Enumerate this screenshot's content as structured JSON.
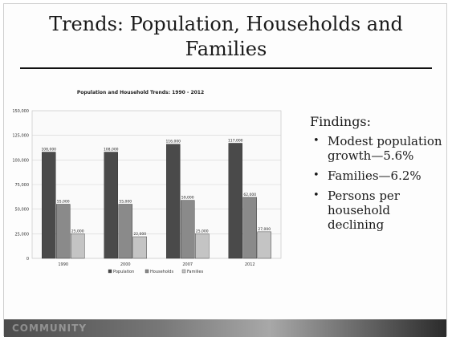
{
  "slide": {
    "title_line1": "Trends: Population, Households and",
    "title_line2": "Families"
  },
  "findings": {
    "heading": "Findings:",
    "items": [
      "Modest population growth—5.6%",
      "Families—6.2%",
      "Persons per household declining"
    ]
  },
  "chart_data": {
    "type": "bar",
    "title": "Population and Household Trends: 1990 - 2012",
    "categories": [
      "1990",
      "2000",
      "2007",
      "2012"
    ],
    "ylim": [
      0,
      150000
    ],
    "yticks": [
      0,
      25000,
      50000,
      75000,
      100000,
      125000,
      150000
    ],
    "ytick_labels": [
      "0",
      "25,000",
      "50,000",
      "75,000",
      "100,000",
      "125,000",
      "150,000"
    ],
    "grid": true,
    "legend": "bottom",
    "series": [
      {
        "name": "Population",
        "color": "#4a4a4a",
        "values": [
          108000,
          108000,
          116000,
          117000
        ]
      },
      {
        "name": "Households",
        "color": "#8a8a8a",
        "values": [
          55000,
          55000,
          59000,
          62000
        ]
      },
      {
        "name": "Families",
        "color": "#c4c4c4",
        "values": [
          25000,
          22000,
          25000,
          27000
        ]
      }
    ]
  },
  "footer": {
    "logo_text": "COMMUNITY"
  }
}
